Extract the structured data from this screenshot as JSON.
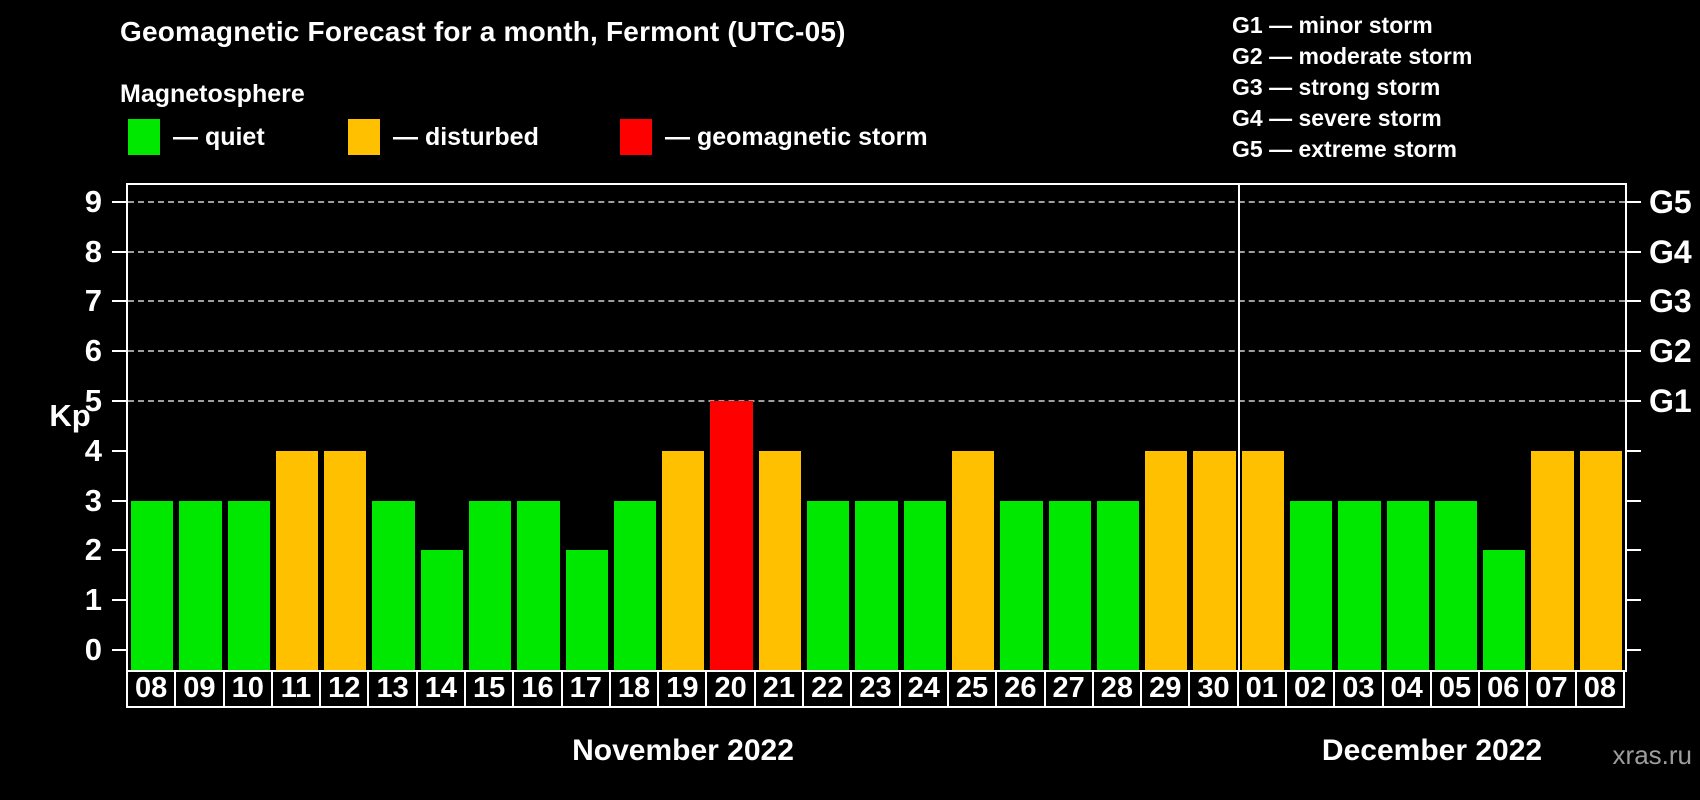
{
  "header": {
    "title": "Geomagnetic Forecast for a month, Fermont (UTC-05)",
    "subtitle": "Magnetosphere"
  },
  "legend": {
    "items": [
      {
        "key": "quiet",
        "label": "— quiet"
      },
      {
        "key": "disturbed",
        "label": "— disturbed"
      },
      {
        "key": "storm",
        "label": "— geomagnetic storm"
      }
    ]
  },
  "g_legend": {
    "items": [
      "G1 — minor storm",
      "G2 — moderate storm",
      "G3 — strong storm",
      "G4 — severe storm",
      "G5 — extreme storm"
    ]
  },
  "axes": {
    "y_label": "Kp",
    "y_ticks": [
      0,
      1,
      2,
      3,
      4,
      5,
      6,
      7,
      8,
      9
    ],
    "gridline_levels": [
      5,
      6,
      7,
      8,
      9
    ],
    "right_labels": [
      {
        "label": "G1",
        "level": 5
      },
      {
        "label": "G2",
        "level": 6
      },
      {
        "label": "G3",
        "level": 7
      },
      {
        "label": "G4",
        "level": 8
      },
      {
        "label": "G5",
        "level": 9
      }
    ]
  },
  "colors": {
    "quiet": "#00e800",
    "disturbed": "#ffc000",
    "storm": "#ff0000",
    "axis": "#ffffff",
    "grid": "#9e9e9e",
    "text": "#ffffff",
    "watermark": "#9e9e9e",
    "background": "#000000"
  },
  "watermark": "xras.ru",
  "chart_data": {
    "type": "bar",
    "title": "Geomagnetic Forecast for a month, Fermont (UTC-05)",
    "ylabel": "Kp",
    "ylim": [
      0,
      9
    ],
    "grid": "dashed horizontal lines at Kp 5-9 (G1-G5)",
    "legend_position": "top-left colors, top-right G-scale",
    "value_color_rule": {
      "quiet": "Kp <= 3",
      "disturbed": "Kp = 4",
      "storm": "Kp >= 5"
    },
    "months": [
      {
        "label": "November 2022",
        "days": [
          "08",
          "09",
          "10",
          "11",
          "12",
          "13",
          "14",
          "15",
          "16",
          "17",
          "18",
          "19",
          "20",
          "21",
          "22",
          "23",
          "24",
          "25",
          "26",
          "27",
          "28",
          "29",
          "30"
        ],
        "values": [
          3,
          3,
          3,
          4,
          4,
          3,
          2,
          3,
          3,
          2,
          3,
          4,
          5,
          4,
          3,
          3,
          3,
          4,
          3,
          3,
          3,
          4,
          4
        ]
      },
      {
        "label": "December 2022",
        "days": [
          "01",
          "02",
          "03",
          "04",
          "05",
          "06",
          "07",
          "08"
        ],
        "values": [
          4,
          3,
          3,
          3,
          3,
          2,
          4,
          4
        ]
      }
    ]
  }
}
